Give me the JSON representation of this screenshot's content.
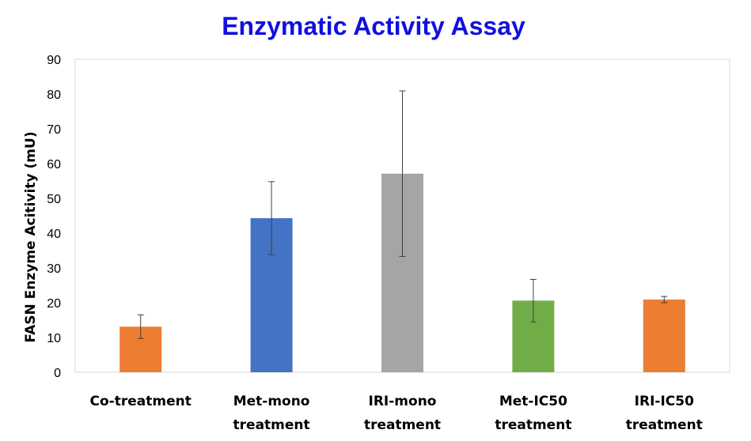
{
  "chart_data": {
    "type": "bar",
    "title": "Enzymatic Activity Assay",
    "xlabel": "",
    "ylabel": "FASN Enzyme Acitivity (mU)",
    "ylim": [
      0,
      90
    ],
    "yticks": [
      0,
      10,
      20,
      30,
      40,
      50,
      60,
      70,
      80,
      90
    ],
    "grid": false,
    "categories": [
      [
        "Co-treatment"
      ],
      [
        "Met-mono",
        "treatment"
      ],
      [
        "IRI-mono",
        "treatment"
      ],
      [
        "Met-IC50",
        "treatment"
      ],
      [
        "IRI-IC50",
        "treatment"
      ]
    ],
    "values": [
      13.1,
      44.3,
      57.1,
      20.6,
      20.9
    ],
    "errors": [
      3.4,
      10.5,
      23.8,
      6.1,
      0.9
    ],
    "colors": [
      "#ED7D31",
      "#4472C4",
      "#A5A5A5",
      "#70AD47",
      "#ED7D31"
    ],
    "title_color": "#1010E0"
  }
}
